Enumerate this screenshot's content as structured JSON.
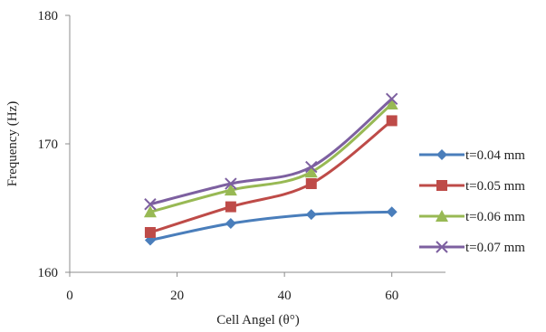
{
  "chart_data": {
    "type": "line",
    "title": "",
    "xlabel": "Cell Angel (θ°)",
    "ylabel": "Frequency (Hz)",
    "xlim": [
      0,
      70
    ],
    "ylim": [
      160,
      180
    ],
    "xticks": [
      0,
      20,
      40,
      60
    ],
    "yticks": [
      160,
      170,
      180
    ],
    "x_tick_labels": [
      "0",
      "20",
      "40",
      "60"
    ],
    "y_tick_labels": [
      "160",
      "170",
      "180"
    ],
    "grid": false,
    "legend_position": "right",
    "smooth": true,
    "x": [
      15,
      30,
      45,
      60
    ],
    "series": [
      {
        "name": "t=0.04 mm",
        "values": [
          162.5,
          163.8,
          164.5,
          164.7
        ],
        "color": "#4A7EBB",
        "marker": "diamond"
      },
      {
        "name": "t=0.05 mm",
        "values": [
          163.1,
          165.1,
          166.9,
          171.8
        ],
        "color": "#BE4B48",
        "marker": "square"
      },
      {
        "name": "t=0.06 mm",
        "values": [
          164.7,
          166.4,
          167.8,
          173.1
        ],
        "color": "#98B954",
        "marker": "triangle"
      },
      {
        "name": "t=0.07 mm",
        "values": [
          165.3,
          166.9,
          168.2,
          173.5
        ],
        "color": "#7D60A0",
        "marker": "x"
      }
    ]
  }
}
